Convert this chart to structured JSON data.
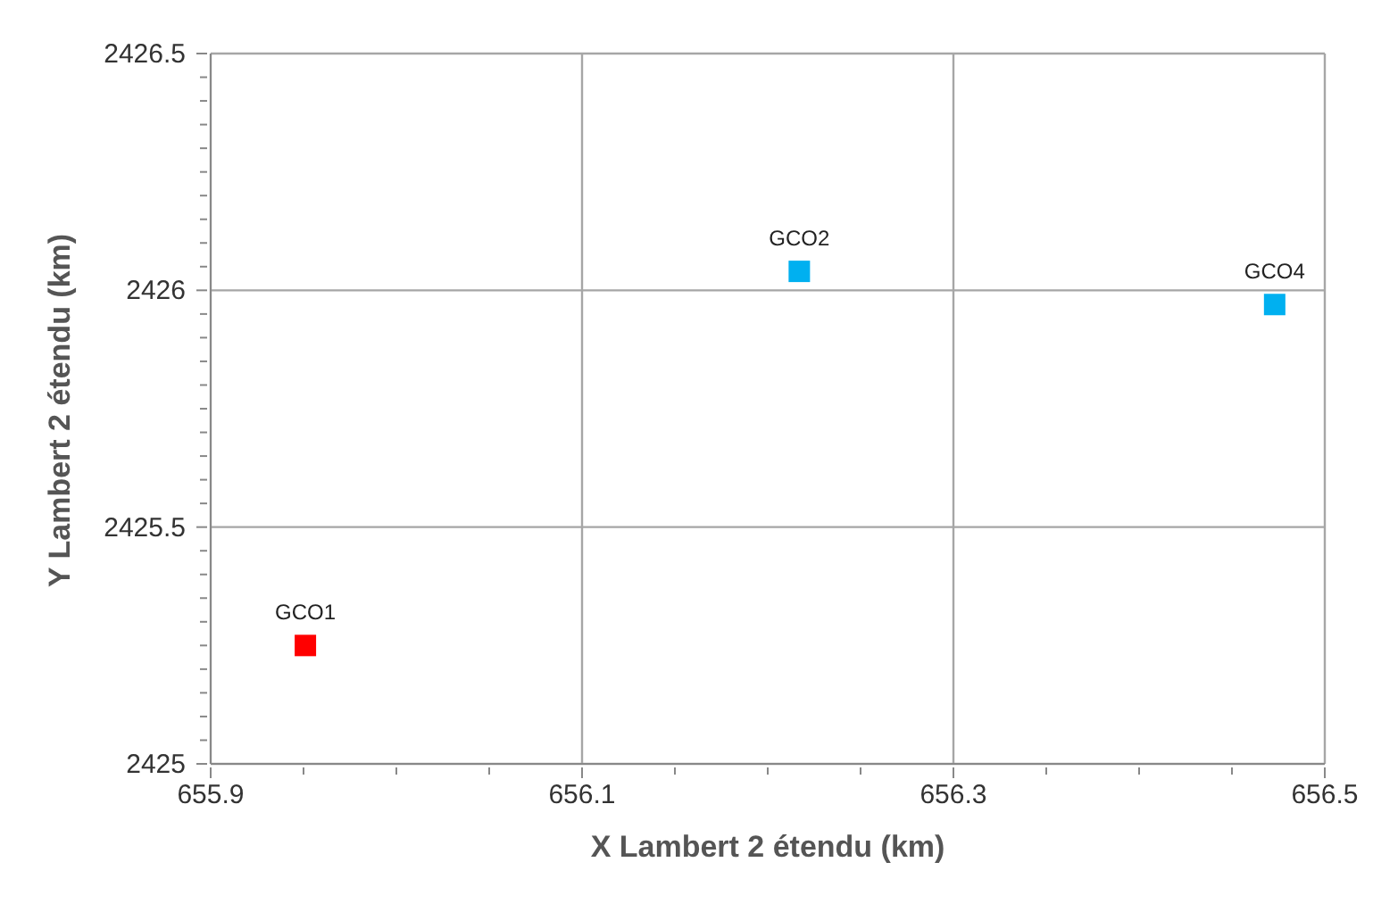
{
  "chart_data": {
    "type": "scatter",
    "xlabel": "X Lambert 2 étendu (km)",
    "ylabel": "Y Lambert 2 étendu (km)",
    "xlim": [
      655.9,
      656.5
    ],
    "xticks": [
      655.9,
      {
        "value": 655.95,
        "label": null
      },
      {
        "value": 656,
        "label": null
      },
      {
        "value": 656.05,
        "label": null
      },
      656.1,
      {
        "value": 656.15,
        "label": null
      },
      {
        "value": 656.2,
        "label": null
      },
      {
        "value": 656.25,
        "label": null
      },
      656.3,
      {
        "value": 656.35,
        "label": null
      },
      {
        "value": 656.4,
        "label": null
      },
      {
        "value": 656.45,
        "label": null
      },
      656.5
    ],
    "ylim": [
      2425,
      2426.5
    ],
    "yticks": [
      2425,
      {
        "value": 2425.05,
        "label": null
      },
      {
        "value": 2425.1,
        "label": null
      },
      {
        "value": 2425.15,
        "label": null
      },
      {
        "value": 2425.2,
        "label": null
      },
      {
        "value": 2425.25,
        "label": null
      },
      {
        "value": 2425.3,
        "label": null
      },
      {
        "value": 2425.35,
        "label": null
      },
      {
        "value": 2425.4,
        "label": null
      },
      {
        "value": 2425.45,
        "label": null
      },
      2425.5,
      {
        "value": 2425.55,
        "label": null
      },
      {
        "value": 2425.6,
        "label": null
      },
      {
        "value": 2425.65,
        "label": null
      },
      {
        "value": 2425.7,
        "label": null
      },
      {
        "value": 2425.75,
        "label": null
      },
      {
        "value": 2425.8,
        "label": null
      },
      {
        "value": 2425.85,
        "label": null
      },
      {
        "value": 2425.9,
        "label": null
      },
      {
        "value": 2425.95,
        "label": null
      },
      2426,
      {
        "value": 2426.05,
        "label": null
      },
      {
        "value": 2426.1,
        "label": null
      },
      {
        "value": 2426.15,
        "label": null
      },
      {
        "value": 2426.2,
        "label": null
      },
      {
        "value": 2426.25,
        "label": null
      },
      {
        "value": 2426.3,
        "label": null
      },
      {
        "value": 2426.35,
        "label": null
      },
      {
        "value": 2426.4,
        "label": null
      },
      {
        "value": 2426.45,
        "label": null
      },
      2426.5
    ],
    "grid": true,
    "legend": false,
    "marker": "square",
    "series": [
      {
        "name": "GCO1",
        "color": "#ff0000",
        "x": [
          655.951
        ],
        "values": [
          2425.25
        ]
      },
      {
        "name": "GCO2",
        "color": "#00b0f0",
        "x": [
          656.217
        ],
        "values": [
          2426.04
        ]
      },
      {
        "name": "GCO4",
        "color": "#00b0f0",
        "x": [
          656.473
        ],
        "values": [
          2425.97
        ]
      }
    ]
  }
}
